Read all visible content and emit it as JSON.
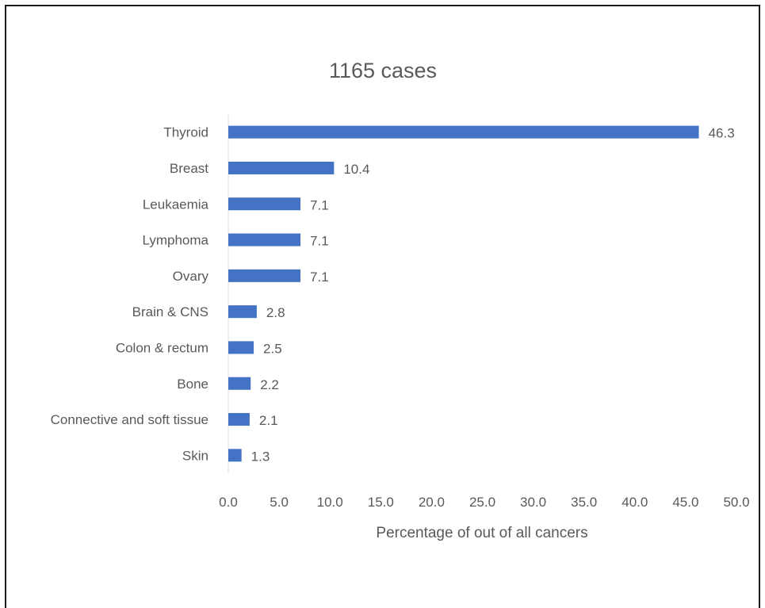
{
  "chart_data": {
    "type": "bar",
    "orientation": "horizontal",
    "title": "1165 cases",
    "xlabel": "Percentage of out of all cancers",
    "ylabel": "",
    "categories": [
      "Thyroid",
      "Breast",
      "Leukaemia",
      "Lymphoma",
      "Ovary",
      "Brain & CNS",
      "Colon & rectum",
      "Bone",
      "Connective and soft tissue",
      "Skin"
    ],
    "values": [
      46.3,
      10.4,
      7.1,
      7.1,
      7.1,
      2.8,
      2.5,
      2.2,
      2.1,
      1.3
    ],
    "value_labels": [
      "46.3",
      "10.4",
      "7.1",
      "7.1",
      "7.1",
      "2.8",
      "2.5",
      "2.2",
      "2.1",
      "1.3"
    ],
    "xlim": [
      0,
      50
    ],
    "xticks": [
      "0.0",
      "5.0",
      "10.0",
      "15.0",
      "20.0",
      "25.0",
      "30.0",
      "35.0",
      "40.0",
      "45.0",
      "50.0"
    ],
    "grid": false,
    "legend": "none",
    "bar_color": "#4472C4",
    "text_color": "#595959",
    "axis_color": "#D9D9D9"
  }
}
